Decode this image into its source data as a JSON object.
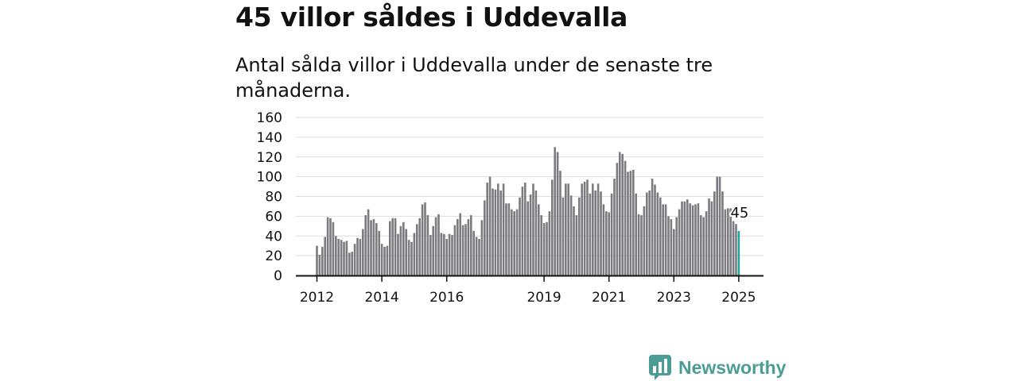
{
  "header": {
    "title": "45 villor såldes i Uddevalla",
    "subtitle": "Antal sålda villor i Uddevalla under de senaste tre månaderna."
  },
  "brand": {
    "name": "Newsworthy",
    "icon": "bar-chart-bubble-icon",
    "color": "#4a9c95"
  },
  "colors": {
    "bar": "#7b7b80",
    "highlight": "#1fa59a",
    "grid": "#dddddd",
    "axis": "#111111"
  },
  "chart_data": {
    "type": "bar",
    "title": "45 villor såldes i Uddevalla",
    "subtitle": "Antal sålda villor i Uddevalla under de senaste tre månaderna.",
    "xlabel": "",
    "ylabel": "",
    "ylim": [
      0,
      160
    ],
    "yticks": [
      0,
      20,
      40,
      60,
      80,
      100,
      120,
      140,
      160
    ],
    "xticks": [
      {
        "label": "2012",
        "index": 0
      },
      {
        "label": "2014",
        "index": 24
      },
      {
        "label": "2016",
        "index": 48
      },
      {
        "label": "2019",
        "index": 84
      },
      {
        "label": "2021",
        "index": 108
      },
      {
        "label": "2023",
        "index": 132
      },
      {
        "label": "2025",
        "index": 156
      }
    ],
    "grid": true,
    "period": "rolling three-month totals, monthly, 2012-01 to 2025-01",
    "values": [
      30,
      21,
      29,
      39,
      59,
      58,
      54,
      40,
      37,
      36,
      34,
      35,
      23,
      24,
      32,
      38,
      37,
      47,
      61,
      67,
      56,
      57,
      53,
      45,
      32,
      29,
      30,
      55,
      58,
      58,
      42,
      50,
      54,
      47,
      36,
      34,
      43,
      52,
      58,
      72,
      74,
      61,
      41,
      50,
      59,
      62,
      43,
      42,
      37,
      42,
      41,
      51,
      57,
      63,
      51,
      52,
      57,
      61,
      45,
      39,
      37,
      56,
      76,
      94,
      100,
      88,
      87,
      93,
      86,
      93,
      73,
      73,
      67,
      65,
      67,
      79,
      90,
      94,
      75,
      82,
      93,
      86,
      72,
      61,
      53,
      54,
      65,
      97,
      130,
      125,
      106,
      79,
      93,
      93,
      81,
      70,
      61,
      79,
      93,
      95,
      97,
      83,
      93,
      86,
      93,
      85,
      72,
      65,
      64,
      83,
      98,
      114,
      125,
      123,
      116,
      105,
      106,
      107,
      83,
      62,
      61,
      70,
      84,
      86,
      98,
      92,
      84,
      79,
      72,
      72,
      60,
      57,
      47,
      59,
      67,
      75,
      75,
      77,
      73,
      71,
      72,
      73,
      61,
      59,
      65,
      78,
      75,
      85,
      100,
      100,
      85,
      67,
      68,
      68,
      55,
      52,
      45
    ],
    "highlight_index": 156,
    "annotations": [
      {
        "index": 156,
        "label": "45"
      }
    ]
  }
}
